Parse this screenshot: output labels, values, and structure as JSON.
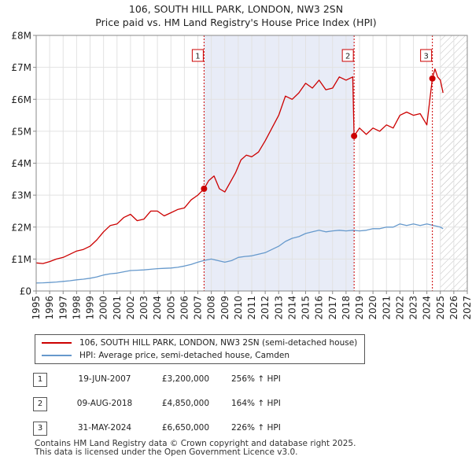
{
  "chart_data": {
    "type": "line",
    "title": "106, SOUTH HILL PARK, LONDON, NW3 2SN",
    "subtitle": "Price paid vs. HM Land Registry's House Price Index (HPI)",
    "xlim": [
      1995,
      2027
    ],
    "ylim": [
      0,
      8000000
    ],
    "x_ticks": [
      "1995",
      "1996",
      "1997",
      "1998",
      "1999",
      "2000",
      "2001",
      "2002",
      "2003",
      "2004",
      "2005",
      "2006",
      "2007",
      "2008",
      "2009",
      "2010",
      "2011",
      "2012",
      "2013",
      "2014",
      "2015",
      "2016",
      "2017",
      "2018",
      "2019",
      "2020",
      "2021",
      "2022",
      "2023",
      "2024",
      "2025",
      "2026",
      "2027"
    ],
    "y_ticks": [
      {
        "value": 0,
        "label": "£0"
      },
      {
        "value": 1000000,
        "label": "£1M"
      },
      {
        "value": 2000000,
        "label": "£2M"
      },
      {
        "value": 3000000,
        "label": "£3M"
      },
      {
        "value": 4000000,
        "label": "£4M"
      },
      {
        "value": 5000000,
        "label": "£5M"
      },
      {
        "value": 6000000,
        "label": "£6M"
      },
      {
        "value": 7000000,
        "label": "£7M"
      },
      {
        "value": 8000000,
        "label": "£8M"
      }
    ],
    "grid": true,
    "shaded_periods": [
      [
        2007.46,
        2018.6
      ]
    ],
    "hatched_from": 2025.0,
    "series": [
      {
        "name": "106, SOUTH HILL PARK, LONDON, NW3 2SN (semi-detached house)",
        "color": "#cc0000",
        "x": [
          1995.0,
          1995.5,
          1996.0,
          1996.5,
          1997.0,
          1997.5,
          1998.0,
          1998.5,
          1999.0,
          1999.5,
          2000.0,
          2000.5,
          2001.0,
          2001.5,
          2002.0,
          2002.5,
          2003.0,
          2003.5,
          2004.0,
          2004.5,
          2005.0,
          2005.5,
          2006.0,
          2006.5,
          2007.0,
          2007.46,
          2007.8,
          2008.2,
          2008.6,
          2009.0,
          2009.4,
          2009.8,
          2010.2,
          2010.6,
          2011.0,
          2011.5,
          2012.0,
          2012.5,
          2013.0,
          2013.5,
          2014.0,
          2014.5,
          2015.0,
          2015.5,
          2016.0,
          2016.5,
          2017.0,
          2017.5,
          2018.0,
          2018.5,
          2018.6,
          2019.0,
          2019.5,
          2020.0,
          2020.5,
          2021.0,
          2021.5,
          2022.0,
          2022.5,
          2023.0,
          2023.5,
          2024.0,
          2024.41,
          2024.6,
          2024.8,
          2025.0,
          2025.2
        ],
        "values": [
          880000,
          860000,
          920000,
          1000000,
          1050000,
          1150000,
          1250000,
          1300000,
          1400000,
          1600000,
          1850000,
          2050000,
          2100000,
          2300000,
          2400000,
          2200000,
          2250000,
          2500000,
          2500000,
          2350000,
          2450000,
          2550000,
          2600000,
          2850000,
          3000000,
          3200000,
          3450000,
          3600000,
          3200000,
          3100000,
          3400000,
          3700000,
          4100000,
          4250000,
          4200000,
          4350000,
          4700000,
          5100000,
          5500000,
          6100000,
          6000000,
          6200000,
          6500000,
          6350000,
          6600000,
          6300000,
          6350000,
          6700000,
          6600000,
          6700000,
          4850000,
          5100000,
          4900000,
          5100000,
          5000000,
          5200000,
          5100000,
          5500000,
          5600000,
          5500000,
          5550000,
          5200000,
          6650000,
          6950000,
          6700000,
          6600000,
          6200000
        ]
      },
      {
        "name": "HPI: Average price, semi-detached house, Camden",
        "color": "#6699cc",
        "x": [
          1995.0,
          1995.5,
          1996.0,
          1996.5,
          1997.0,
          1997.5,
          1998.0,
          1998.5,
          1999.0,
          1999.5,
          2000.0,
          2000.5,
          2001.0,
          2001.5,
          2002.0,
          2002.5,
          2003.0,
          2003.5,
          2004.0,
          2004.5,
          2005.0,
          2005.5,
          2006.0,
          2006.5,
          2007.0,
          2007.5,
          2008.0,
          2008.5,
          2009.0,
          2009.5,
          2010.0,
          2010.5,
          2011.0,
          2011.5,
          2012.0,
          2012.5,
          2013.0,
          2013.5,
          2014.0,
          2014.5,
          2015.0,
          2015.5,
          2016.0,
          2016.5,
          2017.0,
          2017.5,
          2018.0,
          2018.5,
          2019.0,
          2019.5,
          2020.0,
          2020.5,
          2021.0,
          2021.5,
          2022.0,
          2022.5,
          2023.0,
          2023.5,
          2024.0,
          2024.5,
          2025.0,
          2025.2
        ],
        "values": [
          250000,
          255000,
          265000,
          280000,
          300000,
          320000,
          350000,
          370000,
          400000,
          440000,
          500000,
          540000,
          560000,
          600000,
          640000,
          650000,
          660000,
          680000,
          700000,
          710000,
          720000,
          740000,
          780000,
          830000,
          900000,
          960000,
          1000000,
          950000,
          900000,
          950000,
          1050000,
          1080000,
          1100000,
          1150000,
          1200000,
          1300000,
          1400000,
          1550000,
          1650000,
          1700000,
          1800000,
          1850000,
          1900000,
          1850000,
          1880000,
          1900000,
          1880000,
          1900000,
          1880000,
          1900000,
          1950000,
          1950000,
          2000000,
          2000000,
          2100000,
          2050000,
          2100000,
          2050000,
          2100000,
          2050000,
          2000000,
          1950000
        ]
      }
    ],
    "markers": [
      {
        "label": "1",
        "x": 2007.46,
        "y": 3200000
      },
      {
        "label": "2",
        "x": 2018.6,
        "y": 4850000
      },
      {
        "label": "3",
        "x": 2024.41,
        "y": 6650000
      }
    ]
  },
  "legend": {
    "items": [
      {
        "label": "106, SOUTH HILL PARK, LONDON, NW3 2SN (semi-detached house)",
        "color": "#cc0000"
      },
      {
        "label": "HPI: Average price, semi-detached house, Camden",
        "color": "#6699cc"
      }
    ]
  },
  "transactions": [
    {
      "num": "1",
      "date": "19-JUN-2007",
      "price": "£3,200,000",
      "hpi": "256% ↑ HPI"
    },
    {
      "num": "2",
      "date": "09-AUG-2018",
      "price": "£4,850,000",
      "hpi": "164% ↑ HPI"
    },
    {
      "num": "3",
      "date": "31-MAY-2024",
      "price": "£6,650,000",
      "hpi": "226% ↑ HPI"
    }
  ],
  "footer": {
    "line1": "Contains HM Land Registry data © Crown copyright and database right 2025.",
    "line2": "This data is licensed under the Open Government Licence v3.0."
  }
}
